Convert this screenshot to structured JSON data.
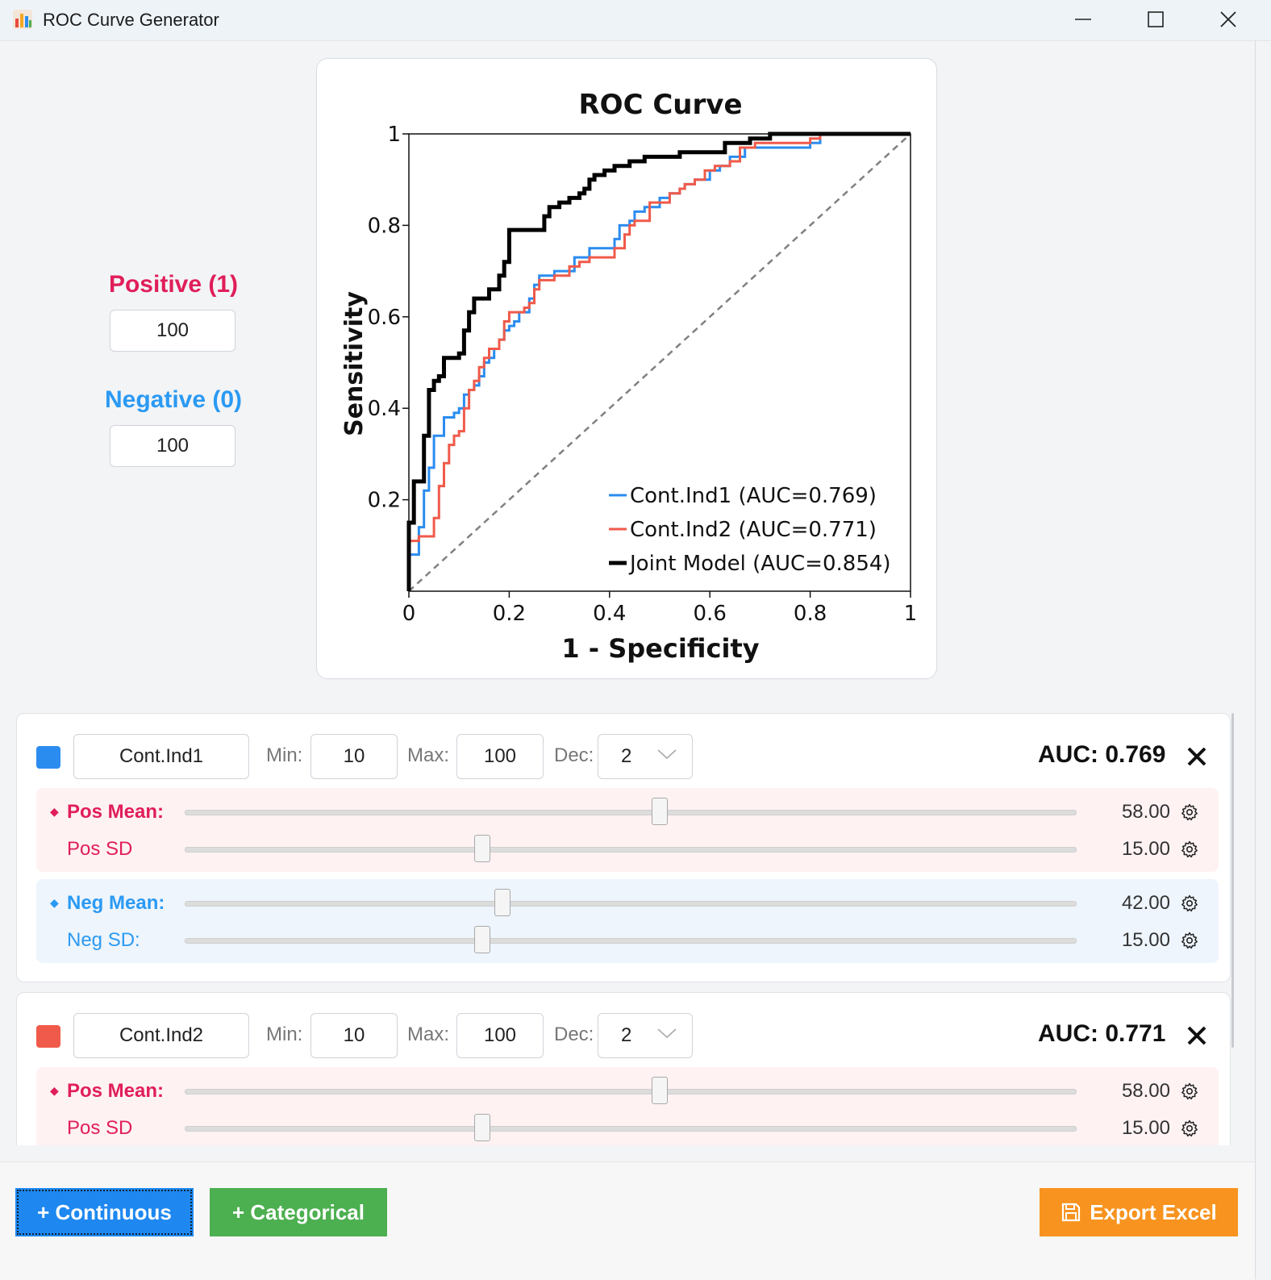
{
  "window": {
    "title": "ROC Curve Generator"
  },
  "samples": {
    "positive_label": "Positive (1)",
    "positive_value": "100",
    "negative_label": "Negative (0)",
    "negative_value": "100",
    "positive_color": "#e01e5a",
    "negative_color": "#2b9af3"
  },
  "chart_data": {
    "type": "line",
    "title": "ROC Curve",
    "xlabel": "1 - Specificity",
    "ylabel": "Sensitivity",
    "xlim": [
      0,
      1
    ],
    "ylim": [
      0,
      1
    ],
    "x_ticks": [
      "0",
      "0.2",
      "0.4",
      "0.6",
      "0.8",
      "1"
    ],
    "y_ticks": [
      "0.2",
      "0.4",
      "0.6",
      "0.8",
      "1"
    ],
    "grid": false,
    "legend_position": "bottom-right",
    "diagonal": {
      "style": "dashed",
      "color": "#808080",
      "points": [
        [
          0,
          0
        ],
        [
          1,
          1
        ]
      ]
    },
    "series": [
      {
        "name": "Cont.Ind1 (AUC=0.769)",
        "color": "#2b8cf0",
        "points": [
          [
            0,
            0
          ],
          [
            0,
            0.08
          ],
          [
            0.02,
            0.08
          ],
          [
            0.02,
            0.14
          ],
          [
            0.03,
            0.14
          ],
          [
            0.03,
            0.22
          ],
          [
            0.04,
            0.22
          ],
          [
            0.04,
            0.27
          ],
          [
            0.05,
            0.27
          ],
          [
            0.05,
            0.34
          ],
          [
            0.07,
            0.34
          ],
          [
            0.07,
            0.38
          ],
          [
            0.09,
            0.38
          ],
          [
            0.09,
            0.39
          ],
          [
            0.1,
            0.39
          ],
          [
            0.1,
            0.4
          ],
          [
            0.11,
            0.4
          ],
          [
            0.11,
            0.43
          ],
          [
            0.12,
            0.43
          ],
          [
            0.12,
            0.44
          ],
          [
            0.13,
            0.44
          ],
          [
            0.13,
            0.45
          ],
          [
            0.14,
            0.45
          ],
          [
            0.14,
            0.47
          ],
          [
            0.15,
            0.47
          ],
          [
            0.15,
            0.5
          ],
          [
            0.16,
            0.5
          ],
          [
            0.16,
            0.51
          ],
          [
            0.17,
            0.51
          ],
          [
            0.17,
            0.53
          ],
          [
            0.18,
            0.53
          ],
          [
            0.18,
            0.55
          ],
          [
            0.19,
            0.55
          ],
          [
            0.19,
            0.57
          ],
          [
            0.2,
            0.57
          ],
          [
            0.2,
            0.58
          ],
          [
            0.21,
            0.58
          ],
          [
            0.21,
            0.59
          ],
          [
            0.22,
            0.59
          ],
          [
            0.22,
            0.61
          ],
          [
            0.24,
            0.61
          ],
          [
            0.24,
            0.64
          ],
          [
            0.25,
            0.64
          ],
          [
            0.25,
            0.67
          ],
          [
            0.26,
            0.67
          ],
          [
            0.26,
            0.69
          ],
          [
            0.29,
            0.69
          ],
          [
            0.29,
            0.7
          ],
          [
            0.33,
            0.7
          ],
          [
            0.33,
            0.73
          ],
          [
            0.36,
            0.73
          ],
          [
            0.36,
            0.75
          ],
          [
            0.41,
            0.75
          ],
          [
            0.41,
            0.77
          ],
          [
            0.42,
            0.77
          ],
          [
            0.42,
            0.8
          ],
          [
            0.44,
            0.8
          ],
          [
            0.44,
            0.81
          ],
          [
            0.45,
            0.81
          ],
          [
            0.45,
            0.83
          ],
          [
            0.47,
            0.83
          ],
          [
            0.47,
            0.84
          ],
          [
            0.5,
            0.84
          ],
          [
            0.5,
            0.86
          ],
          [
            0.52,
            0.86
          ],
          [
            0.52,
            0.87
          ],
          [
            0.54,
            0.87
          ],
          [
            0.54,
            0.88
          ],
          [
            0.55,
            0.88
          ],
          [
            0.55,
            0.89
          ],
          [
            0.57,
            0.89
          ],
          [
            0.57,
            0.9
          ],
          [
            0.6,
            0.9
          ],
          [
            0.6,
            0.92
          ],
          [
            0.62,
            0.92
          ],
          [
            0.62,
            0.93
          ],
          [
            0.64,
            0.93
          ],
          [
            0.64,
            0.95
          ],
          [
            0.67,
            0.95
          ],
          [
            0.67,
            0.97
          ],
          [
            0.8,
            0.97
          ],
          [
            0.8,
            0.98
          ],
          [
            0.82,
            0.98
          ],
          [
            0.82,
            1
          ],
          [
            1,
            1
          ]
        ]
      },
      {
        "name": "Cont.Ind2 (AUC=0.771)",
        "color": "#f05a4a",
        "points": [
          [
            0,
            0
          ],
          [
            0,
            0.11
          ],
          [
            0.02,
            0.11
          ],
          [
            0.02,
            0.12
          ],
          [
            0.05,
            0.12
          ],
          [
            0.05,
            0.16
          ],
          [
            0.06,
            0.16
          ],
          [
            0.06,
            0.23
          ],
          [
            0.07,
            0.23
          ],
          [
            0.07,
            0.28
          ],
          [
            0.08,
            0.28
          ],
          [
            0.08,
            0.32
          ],
          [
            0.09,
            0.32
          ],
          [
            0.09,
            0.34
          ],
          [
            0.1,
            0.34
          ],
          [
            0.1,
            0.35
          ],
          [
            0.11,
            0.35
          ],
          [
            0.11,
            0.4
          ],
          [
            0.12,
            0.4
          ],
          [
            0.12,
            0.44
          ],
          [
            0.13,
            0.44
          ],
          [
            0.13,
            0.46
          ],
          [
            0.14,
            0.46
          ],
          [
            0.14,
            0.49
          ],
          [
            0.15,
            0.49
          ],
          [
            0.15,
            0.51
          ],
          [
            0.16,
            0.51
          ],
          [
            0.16,
            0.53
          ],
          [
            0.18,
            0.53
          ],
          [
            0.18,
            0.55
          ],
          [
            0.19,
            0.55
          ],
          [
            0.19,
            0.59
          ],
          [
            0.2,
            0.59
          ],
          [
            0.2,
            0.61
          ],
          [
            0.23,
            0.61
          ],
          [
            0.23,
            0.62
          ],
          [
            0.24,
            0.62
          ],
          [
            0.24,
            0.63
          ],
          [
            0.25,
            0.63
          ],
          [
            0.25,
            0.66
          ],
          [
            0.26,
            0.66
          ],
          [
            0.26,
            0.68
          ],
          [
            0.29,
            0.68
          ],
          [
            0.29,
            0.69
          ],
          [
            0.32,
            0.69
          ],
          [
            0.32,
            0.71
          ],
          [
            0.34,
            0.71
          ],
          [
            0.34,
            0.72
          ],
          [
            0.36,
            0.72
          ],
          [
            0.36,
            0.73
          ],
          [
            0.41,
            0.73
          ],
          [
            0.41,
            0.75
          ],
          [
            0.43,
            0.75
          ],
          [
            0.43,
            0.78
          ],
          [
            0.44,
            0.78
          ],
          [
            0.44,
            0.8
          ],
          [
            0.45,
            0.8
          ],
          [
            0.45,
            0.81
          ],
          [
            0.48,
            0.81
          ],
          [
            0.48,
            0.85
          ],
          [
            0.52,
            0.85
          ],
          [
            0.52,
            0.87
          ],
          [
            0.54,
            0.87
          ],
          [
            0.54,
            0.88
          ],
          [
            0.55,
            0.88
          ],
          [
            0.55,
            0.89
          ],
          [
            0.57,
            0.89
          ],
          [
            0.57,
            0.9
          ],
          [
            0.59,
            0.9
          ],
          [
            0.59,
            0.92
          ],
          [
            0.61,
            0.92
          ],
          [
            0.61,
            0.93
          ],
          [
            0.64,
            0.93
          ],
          [
            0.64,
            0.94
          ],
          [
            0.66,
            0.94
          ],
          [
            0.66,
            0.97
          ],
          [
            0.69,
            0.97
          ],
          [
            0.69,
            0.98
          ],
          [
            0.8,
            0.98
          ],
          [
            0.8,
            0.99
          ],
          [
            0.82,
            0.99
          ],
          [
            0.82,
            1
          ],
          [
            1,
            1
          ]
        ]
      },
      {
        "name": "Joint Model (AUC=0.854)",
        "color": "#000000",
        "points": [
          [
            0,
            0
          ],
          [
            0,
            0.15
          ],
          [
            0.01,
            0.15
          ],
          [
            0.01,
            0.24
          ],
          [
            0.03,
            0.24
          ],
          [
            0.03,
            0.34
          ],
          [
            0.04,
            0.34
          ],
          [
            0.04,
            0.44
          ],
          [
            0.05,
            0.44
          ],
          [
            0.05,
            0.46
          ],
          [
            0.06,
            0.46
          ],
          [
            0.06,
            0.47
          ],
          [
            0.07,
            0.47
          ],
          [
            0.07,
            0.51
          ],
          [
            0.1,
            0.51
          ],
          [
            0.1,
            0.52
          ],
          [
            0.11,
            0.52
          ],
          [
            0.11,
            0.57
          ],
          [
            0.12,
            0.57
          ],
          [
            0.12,
            0.61
          ],
          [
            0.13,
            0.61
          ],
          [
            0.13,
            0.64
          ],
          [
            0.16,
            0.64
          ],
          [
            0.16,
            0.66
          ],
          [
            0.18,
            0.66
          ],
          [
            0.18,
            0.69
          ],
          [
            0.19,
            0.69
          ],
          [
            0.19,
            0.72
          ],
          [
            0.2,
            0.72
          ],
          [
            0.2,
            0.79
          ],
          [
            0.27,
            0.79
          ],
          [
            0.27,
            0.82
          ],
          [
            0.28,
            0.82
          ],
          [
            0.28,
            0.84
          ],
          [
            0.3,
            0.84
          ],
          [
            0.3,
            0.85
          ],
          [
            0.32,
            0.85
          ],
          [
            0.32,
            0.86
          ],
          [
            0.34,
            0.86
          ],
          [
            0.34,
            0.87
          ],
          [
            0.35,
            0.87
          ],
          [
            0.35,
            0.88
          ],
          [
            0.36,
            0.88
          ],
          [
            0.36,
            0.9
          ],
          [
            0.37,
            0.9
          ],
          [
            0.37,
            0.91
          ],
          [
            0.39,
            0.91
          ],
          [
            0.39,
            0.92
          ],
          [
            0.41,
            0.92
          ],
          [
            0.41,
            0.93
          ],
          [
            0.44,
            0.93
          ],
          [
            0.44,
            0.94
          ],
          [
            0.47,
            0.94
          ],
          [
            0.47,
            0.95
          ],
          [
            0.54,
            0.95
          ],
          [
            0.54,
            0.96
          ],
          [
            0.63,
            0.96
          ],
          [
            0.63,
            0.98
          ],
          [
            0.68,
            0.98
          ],
          [
            0.68,
            0.99
          ],
          [
            0.72,
            0.99
          ],
          [
            0.72,
            1
          ],
          [
            1,
            1
          ]
        ]
      }
    ]
  },
  "indicators": [
    {
      "color": "#2b8cf0",
      "name": "Cont.Ind1",
      "min_label": "Min:",
      "min": "10",
      "max_label": "Max:",
      "max": "100",
      "dec_label": "Dec:",
      "dec": "2",
      "auc": "AUC: 0.769",
      "pos_mean_label": "Pos Mean:",
      "pos_mean": "58.00",
      "pos_mean_frac": 0.533,
      "pos_sd_label": "Pos SD",
      "pos_sd": "15.00",
      "pos_sd_frac": 0.333,
      "neg_mean_label": "Neg Mean:",
      "neg_mean": "42.00",
      "neg_mean_frac": 0.356,
      "neg_sd_label": "Neg SD:",
      "neg_sd": "15.00",
      "neg_sd_frac": 0.333
    },
    {
      "color": "#f05a4a",
      "name": "Cont.Ind2",
      "min_label": "Min:",
      "min": "10",
      "max_label": "Max:",
      "max": "100",
      "dec_label": "Dec:",
      "dec": "2",
      "auc": "AUC: 0.771",
      "pos_mean_label": "Pos Mean:",
      "pos_mean": "58.00",
      "pos_mean_frac": 0.533,
      "pos_sd_label": "Pos SD",
      "pos_sd": "15.00",
      "pos_sd_frac": 0.333
    }
  ],
  "buttons": {
    "add_continuous": "+ Continuous",
    "add_categorical": "+ Categorical",
    "export_excel": "Export Excel",
    "continuous_color": "#1e88f0",
    "categorical_color": "#4caf50",
    "export_color": "#f7931e"
  },
  "icons": [
    "app-chart-icon",
    "minimize-icon",
    "maximize-icon",
    "close-icon",
    "chevron-down-icon",
    "remove-x-icon",
    "gear-icon",
    "save-icon"
  ]
}
